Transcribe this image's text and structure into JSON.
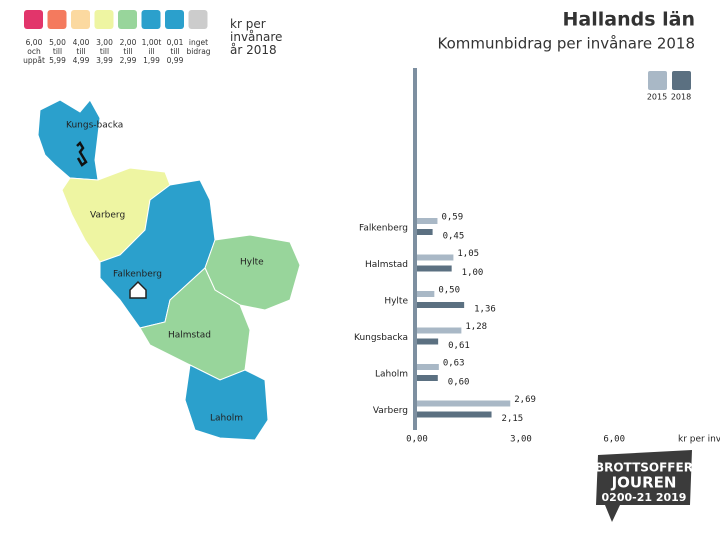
{
  "legend": {
    "items": [
      {
        "label": "6,00 och uppåt",
        "color": "#e2356b"
      },
      {
        "label": "5,00 till 5,99",
        "color": "#f47a5e"
      },
      {
        "label": "4,00 till 4,99",
        "color": "#fbd9a0"
      },
      {
        "label": "3,00 till 3,99",
        "color": "#eef5a2"
      },
      {
        "label": "2,00 till 2,99",
        "color": "#98d59b"
      },
      {
        "label": "1,00t ill 1,99",
        "color": "#2ba0cc"
      },
      {
        "label": "0,01 till 0,99",
        "color": "#2ba0cc"
      },
      {
        "label": "inget bidrag",
        "color": "#cccccc"
      }
    ],
    "title": "kr per invånare år 2018"
  },
  "map": {
    "regions": [
      {
        "label": "Kungs-backa"
      },
      {
        "label": "Varberg"
      },
      {
        "label": "Falkenberg"
      },
      {
        "label": "Hylte"
      },
      {
        "label": "Halmstad"
      },
      {
        "label": "Laholm"
      }
    ]
  },
  "chart_data": {
    "type": "hbar",
    "title": "Hallands län",
    "subtitle": "Kommunbidrag per invånare 2018",
    "categories": [
      "Falkenberg",
      "Halmstad",
      "Hylte",
      "Kungsbacka",
      "Laholm",
      "Varberg"
    ],
    "series": [
      {
        "name": "2015",
        "color": "#a9b8c6",
        "values": [
          0.59,
          1.05,
          0.5,
          1.28,
          0.63,
          2.69
        ],
        "value_labels": [
          "0,59",
          "1,05",
          "0,50",
          "1,28",
          "0,63",
          "2,69"
        ]
      },
      {
        "name": "2018",
        "color": "#5b7081",
        "values": [
          0.45,
          1.0,
          1.36,
          0.61,
          0.6,
          2.15
        ],
        "value_labels": [
          "0,45",
          "1,00",
          "1,36",
          "0,61",
          "0,60",
          "2,15"
        ]
      }
    ],
    "xlim": [
      0,
      6
    ],
    "xticks": [
      {
        "value": 0,
        "label": "0,00"
      },
      {
        "value": 3,
        "label": "3,00"
      },
      {
        "value": 6,
        "label": "6,00"
      }
    ],
    "xlabel": "kr per inv"
  },
  "logo": {
    "line1": "BROTTSOFFER",
    "line2": "JOUREN",
    "line3": "0200-21 2019"
  }
}
